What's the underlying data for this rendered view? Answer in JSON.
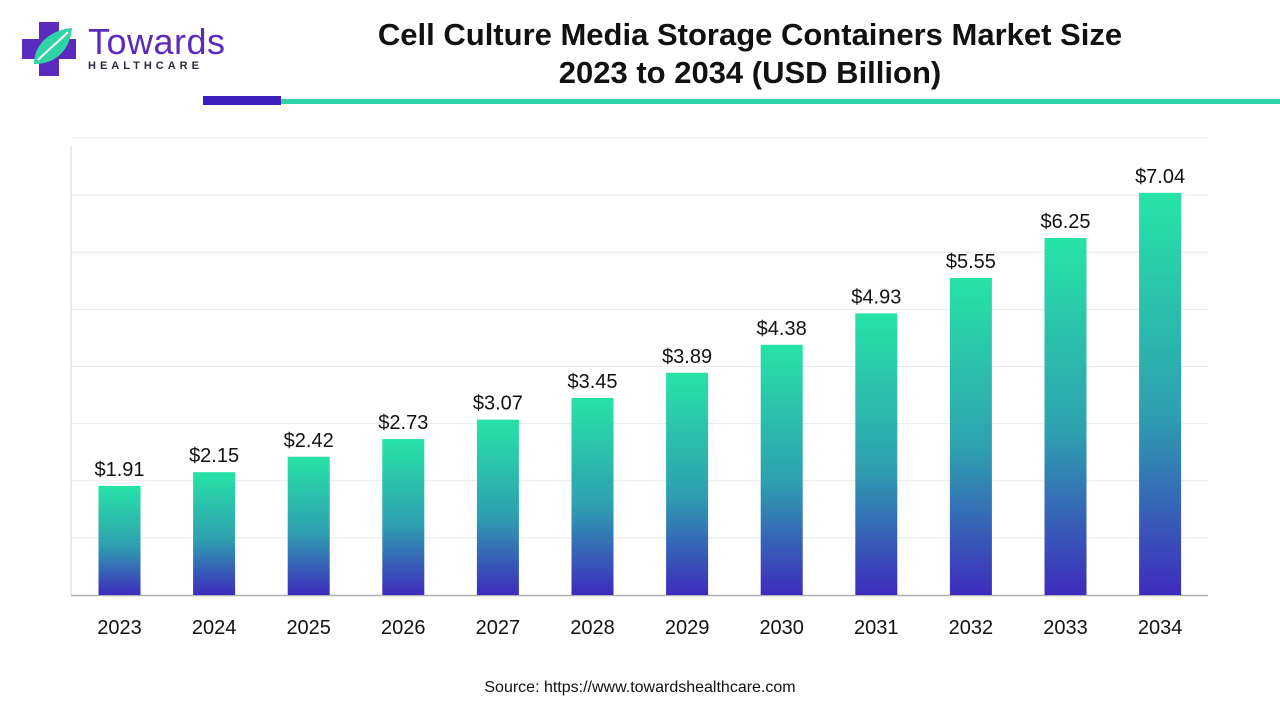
{
  "logo": {
    "name": "Towards",
    "subtitle": "HEALTHCARE",
    "colors": {
      "purple": "#5b2bbd",
      "teal": "#2fd4a6"
    }
  },
  "title_line1": "Cell Culture Media Storage Containers Market Size",
  "title_line2": "2023 to 2034 (USD Billion)",
  "source": "Source: https://www.towardshealthcare.com",
  "colors": {
    "bar_top": "#27e3a6",
    "bar_bottom": "#3e2bbd",
    "grid": "#e9e9e9",
    "axis": "#b0b0b0",
    "rule_dark": "#3d1fbf",
    "rule_teal": "#2fd4a6"
  },
  "chart_data": {
    "type": "bar",
    "title": "Cell Culture Media Storage Containers Market Size 2023 to 2034 (USD Billion)",
    "categories": [
      "2023",
      "2024",
      "2025",
      "2026",
      "2027",
      "2028",
      "2029",
      "2030",
      "2031",
      "2032",
      "2033",
      "2034"
    ],
    "values": [
      1.91,
      2.15,
      2.42,
      2.73,
      3.07,
      3.45,
      3.89,
      4.38,
      4.93,
      5.55,
      6.25,
      7.04
    ],
    "value_labels": [
      "$1.91",
      "$2.15",
      "$2.42",
      "$2.73",
      "$3.07",
      "$3.45",
      "$3.89",
      "$4.38",
      "$4.93",
      "$5.55",
      "$6.25",
      "$7.04"
    ],
    "xlabel": "",
    "ylabel": "",
    "ylim": [
      0,
      8
    ],
    "grid": true,
    "legend": "none"
  }
}
